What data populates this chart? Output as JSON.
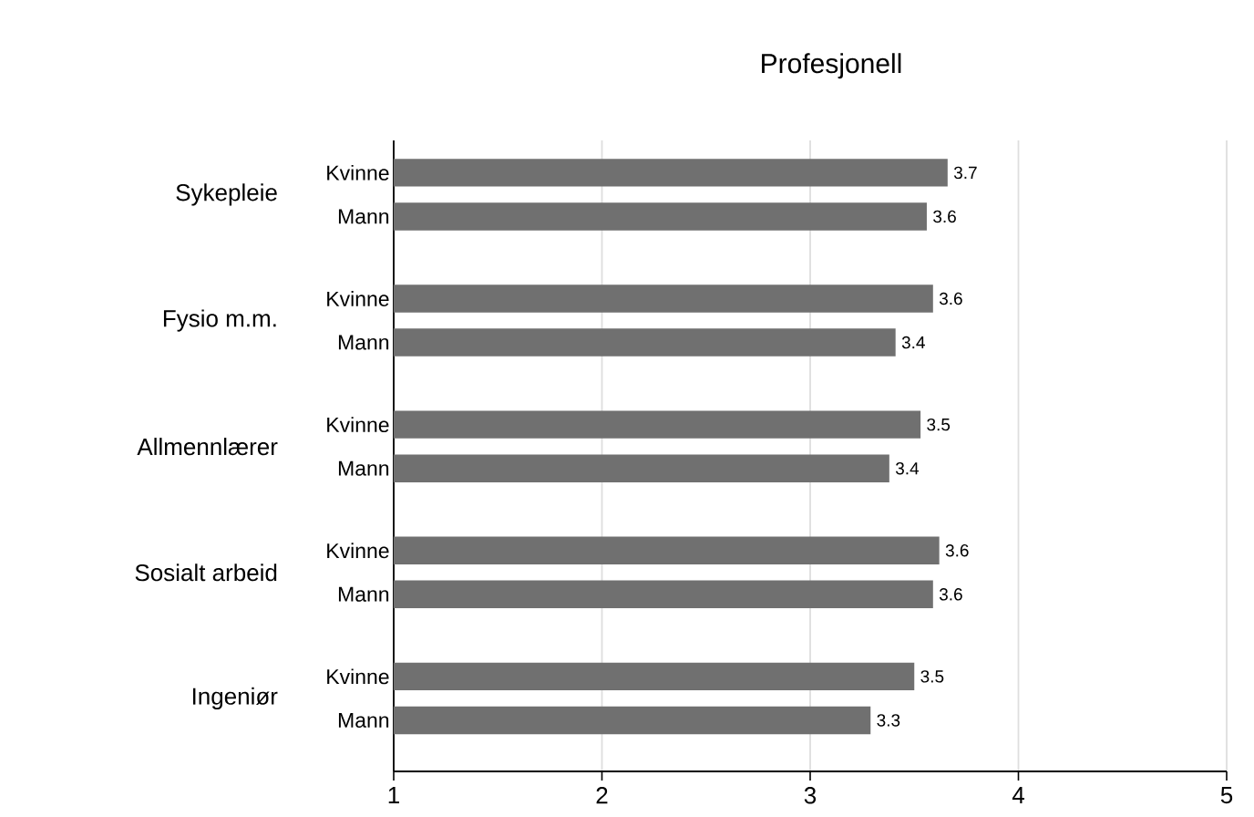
{
  "chart_data": {
    "type": "bar",
    "orientation": "horizontal",
    "title": "Profesjonell",
    "categories": [
      "Sykepleie",
      "Fysio m.m.",
      "Allmennlærer",
      "Sosialt arbeid",
      "Ingeniør"
    ],
    "series": [
      {
        "name": "Kvinne",
        "color": "#707070",
        "values": [
          3.66,
          3.59,
          3.53,
          3.62,
          3.5
        ],
        "value_labels": [
          "3.7",
          "3.6",
          "3.5",
          "3.6",
          "3.5"
        ]
      },
      {
        "name": "Mann",
        "color": "#707070",
        "values": [
          3.56,
          3.41,
          3.38,
          3.59,
          3.29
        ],
        "value_labels": [
          "3.6",
          "3.4",
          "3.4",
          "3.6",
          "3.3"
        ]
      }
    ],
    "xlim": [
      1,
      5
    ],
    "xticks": [
      1,
      2,
      3,
      4,
      5
    ],
    "grid": "x"
  }
}
